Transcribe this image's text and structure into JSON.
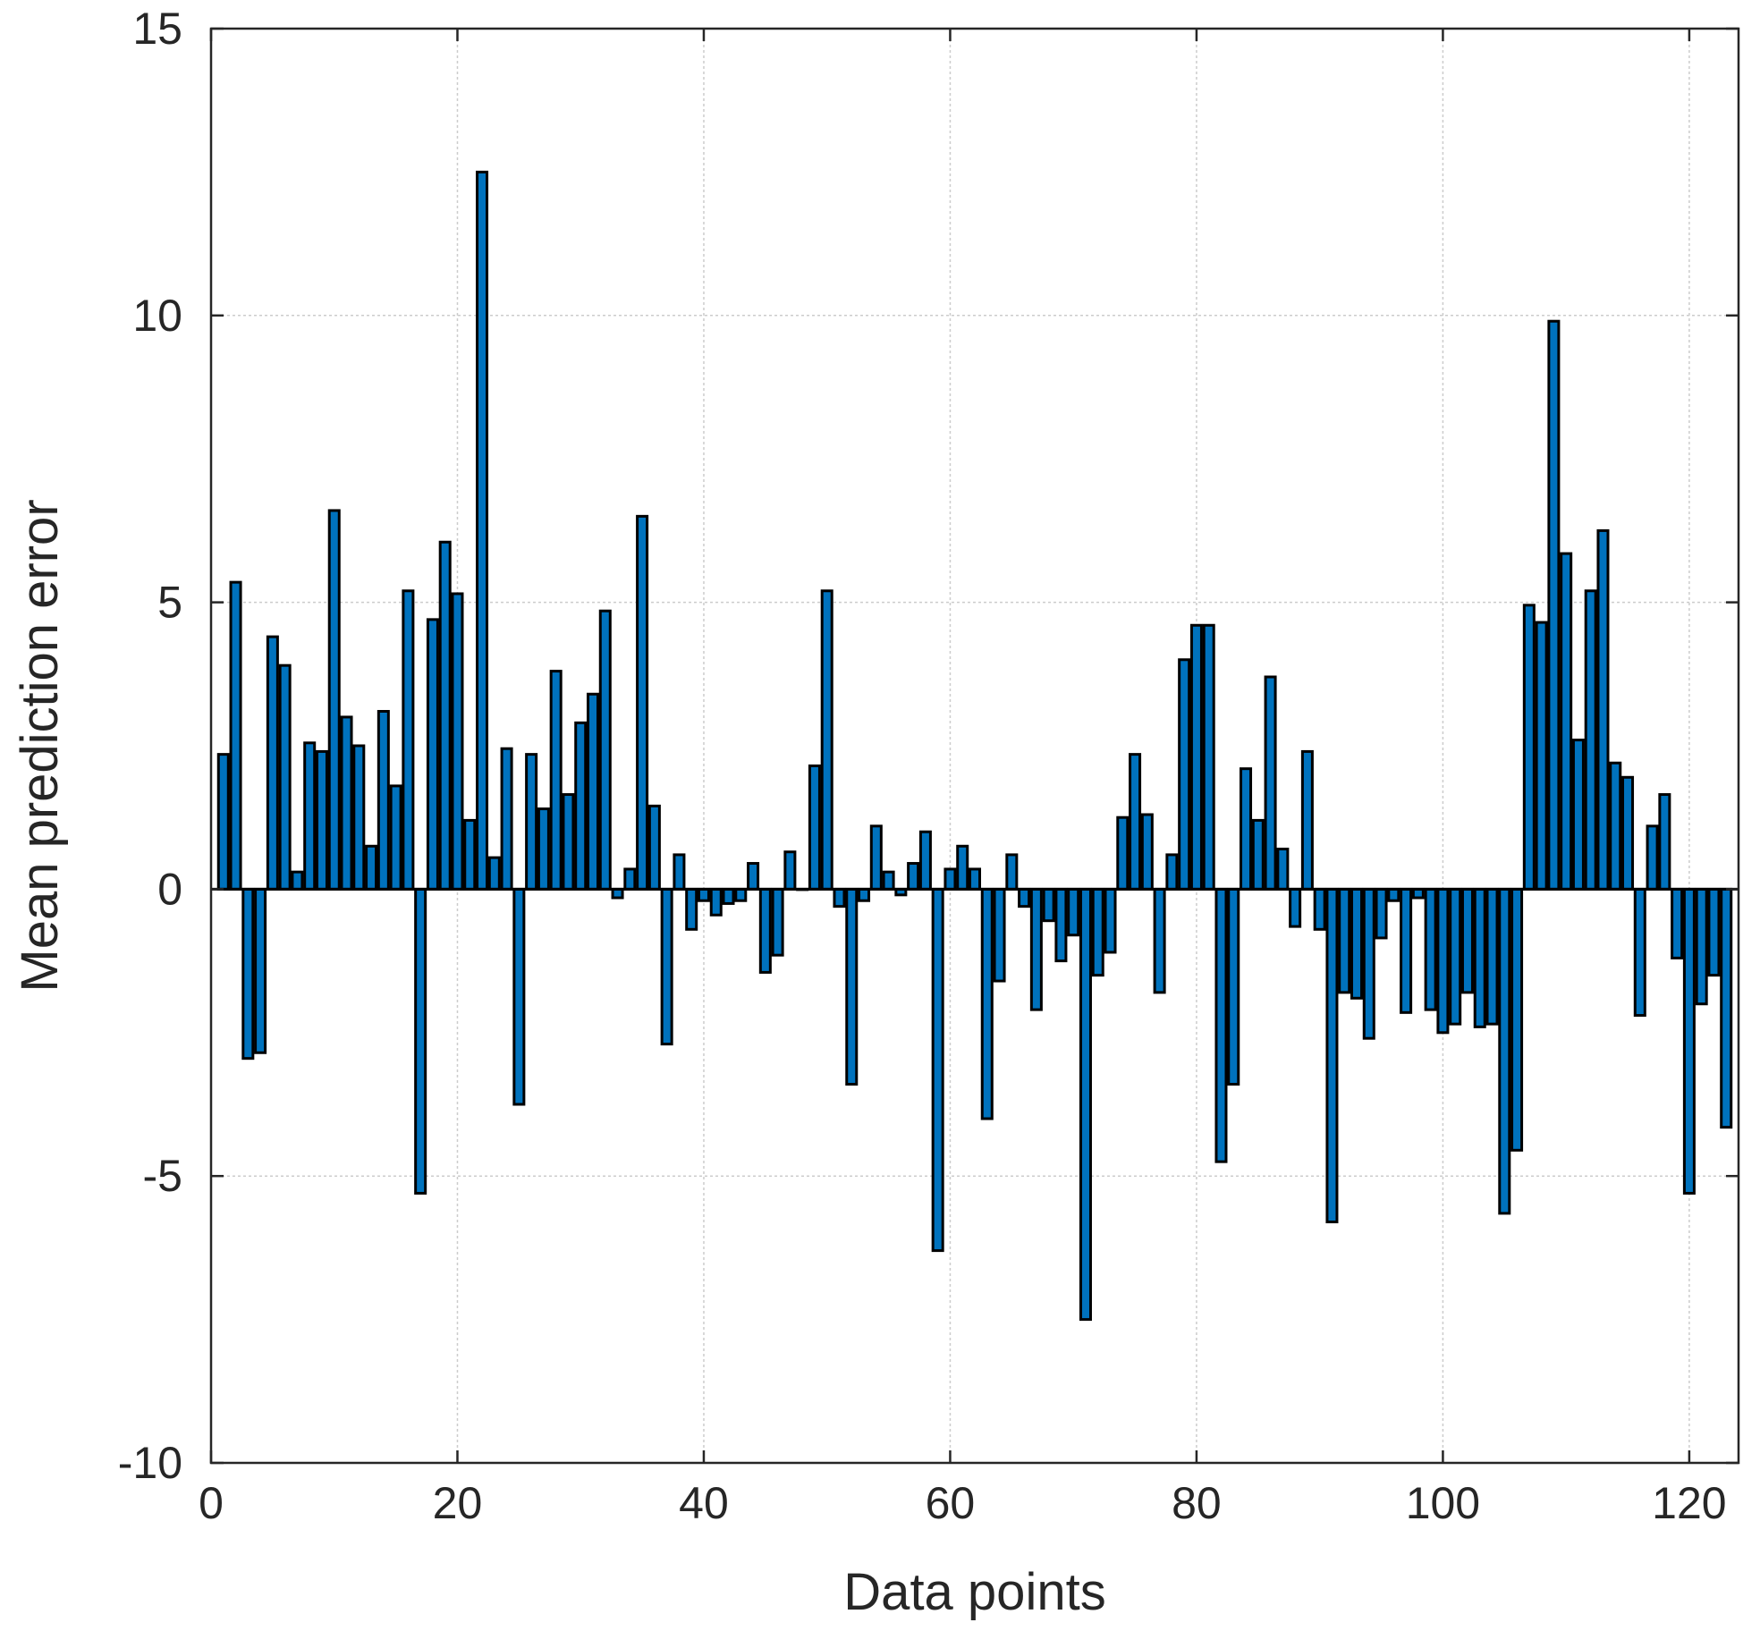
{
  "chart_data": {
    "type": "bar",
    "title": "",
    "xlabel": "Data points",
    "ylabel": "Mean prediction error",
    "xlim": [
      0,
      124
    ],
    "ylim": [
      -10,
      15
    ],
    "xticks": [
      0,
      20,
      40,
      60,
      80,
      100,
      120
    ],
    "yticks": [
      -10,
      -5,
      0,
      5,
      10,
      15
    ],
    "xtick_labels": [
      "0",
      "20",
      "40",
      "60",
      "80",
      "100",
      "120"
    ],
    "ytick_labels": [
      "-10",
      "-5",
      "0",
      "5",
      "10",
      "15"
    ],
    "grid": true,
    "bar_color": "#0072BD",
    "edge_color": "#000000",
    "x": [
      1,
      2,
      3,
      4,
      5,
      6,
      7,
      8,
      9,
      10,
      11,
      12,
      13,
      14,
      15,
      16,
      17,
      18,
      19,
      20,
      21,
      22,
      23,
      24,
      25,
      26,
      27,
      28,
      29,
      30,
      31,
      32,
      33,
      34,
      35,
      36,
      37,
      38,
      39,
      40,
      41,
      42,
      43,
      44,
      45,
      46,
      47,
      48,
      49,
      50,
      51,
      52,
      53,
      54,
      55,
      56,
      57,
      58,
      59,
      60,
      61,
      62,
      63,
      64,
      65,
      66,
      67,
      68,
      69,
      70,
      71,
      72,
      73,
      74,
      75,
      76,
      77,
      78,
      79,
      80,
      81,
      82,
      83,
      84,
      85,
      86,
      87,
      88,
      89,
      90,
      91,
      92,
      93,
      94,
      95,
      96,
      97,
      98,
      99,
      100,
      101,
      102,
      103,
      104,
      105,
      106,
      107,
      108,
      109,
      110,
      111,
      112,
      113,
      114,
      115,
      116,
      117,
      118,
      119,
      120,
      121,
      122,
      123
    ],
    "values": [
      2.35,
      5.35,
      -2.95,
      -2.85,
      4.4,
      3.9,
      0.3,
      2.55,
      2.4,
      6.6,
      3.0,
      2.5,
      0.75,
      3.1,
      1.8,
      5.2,
      -5.3,
      4.7,
      6.05,
      5.15,
      1.2,
      12.5,
      0.55,
      2.45,
      -3.75,
      2.35,
      1.4,
      3.8,
      1.65,
      2.9,
      3.4,
      4.85,
      -0.15,
      0.35,
      6.5,
      1.45,
      -2.7,
      0.6,
      -0.7,
      -0.2,
      -0.45,
      -0.25,
      -0.2,
      0.45,
      -1.45,
      -1.15,
      0.65,
      0.0,
      2.15,
      5.2,
      -0.3,
      -3.4,
      -0.2,
      1.1,
      0.3,
      -0.1,
      0.45,
      1.0,
      -6.3,
      0.35,
      0.75,
      0.35,
      -4.0,
      -1.6,
      0.6,
      -0.3,
      -2.1,
      -0.55,
      -1.25,
      -0.8,
      -7.5,
      -1.5,
      -1.1,
      1.25,
      2.35,
      1.3,
      -1.8,
      0.6,
      4.0,
      4.6,
      4.6,
      -4.75,
      -3.4,
      2.1,
      1.2,
      3.7,
      0.7,
      -0.65,
      2.4,
      -0.7,
      -5.8,
      -1.8,
      -1.9,
      -2.6,
      -0.85,
      -0.2,
      -2.15,
      -0.15,
      -2.1,
      -2.5,
      -2.35,
      -1.8,
      -2.4,
      -2.35,
      -5.65,
      -4.55,
      4.95,
      4.65,
      9.9,
      5.85,
      2.6,
      5.2,
      6.25,
      2.2,
      1.95,
      -2.2,
      1.1,
      1.65,
      -1.2,
      -5.3,
      -2.0,
      -1.5,
      -4.15
    ]
  }
}
